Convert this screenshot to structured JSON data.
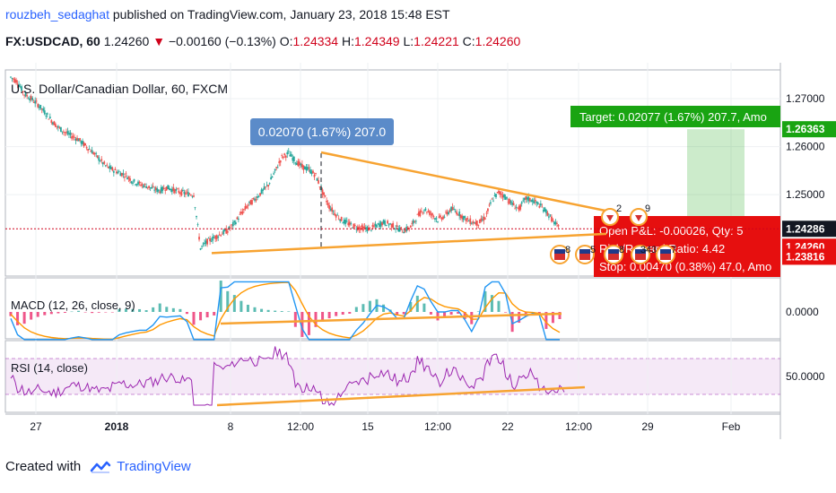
{
  "header": {
    "author": "rouzbeh_sedaghat",
    "published_text": "published on TradingView.com, January 23, 2018 15:48 EST",
    "symbol": "FX:USDCAD, 60",
    "last": "1.24260",
    "change": "−0.00160 (−0.13%)",
    "open_label": "O:",
    "open": "1.24334",
    "high_label": "H:",
    "high": "1.24349",
    "low_label": "L:",
    "low": "1.24221",
    "close_label": "C:",
    "close": "1.24260"
  },
  "footer": {
    "created_with": "Created with",
    "brand": "TradingView"
  },
  "colors": {
    "up": "#26a69a",
    "down": "#ef5350",
    "trendline": "#f7a331",
    "macd": "#2196f3",
    "signal": "#ff9800",
    "rsi": "#9c27b0",
    "target": "#19a412",
    "stop": "#e60f0f"
  },
  "chart_data": [
    {
      "type": "candlestick",
      "title": "U.S. Dollar/Canadian Dollar, 60, FXCM",
      "ylim": [
        1.233,
        1.276
      ],
      "y_ticks": [
        "1.27000",
        "1.26000",
        "1.25000"
      ],
      "x_ticks": [
        "27",
        "2018",
        "8",
        "12:00",
        "15",
        "12:00",
        "22",
        "12:00",
        "29",
        "Feb"
      ],
      "price_labels": {
        "target_level": "1.26363",
        "current": "1.24286",
        "last": "1.24260",
        "stop_level": "1.23816"
      },
      "close_path": [
        1.2745,
        1.2735,
        1.271,
        1.27,
        1.2688,
        1.2672,
        1.2655,
        1.264,
        1.263,
        1.2622,
        1.2615,
        1.2602,
        1.259,
        1.2575,
        1.256,
        1.2552,
        1.2546,
        1.254,
        1.2528,
        1.2522,
        1.2518,
        1.2512,
        1.2508,
        1.2515,
        1.251,
        1.2505,
        1.2502,
        1.25,
        1.2388,
        1.2402,
        1.241,
        1.2418,
        1.2425,
        1.244,
        1.246,
        1.2478,
        1.249,
        1.2505,
        1.252,
        1.2548,
        1.2578,
        1.2586,
        1.257,
        1.2558,
        1.2552,
        1.254,
        1.2505,
        1.2475,
        1.2458,
        1.2445,
        1.2438,
        1.2432,
        1.243,
        1.2428,
        1.2435,
        1.2442,
        1.2438,
        1.243,
        1.2425,
        1.2432,
        1.2455,
        1.247,
        1.246,
        1.2448,
        1.2455,
        1.247,
        1.2462,
        1.245,
        1.2443,
        1.244,
        1.2452,
        1.2488,
        1.2505,
        1.2495,
        1.248,
        1.247,
        1.2492,
        1.2488,
        1.2478,
        1.2465,
        1.2445,
        1.2428
      ],
      "annotations": {
        "measure_label": "0.02070 (1.67%) 207.0",
        "target_label": "Target: 0.02077 (1.67%) 207.7, Amo",
        "open_pl_label": "Open P&L: -0.00026, Qty: 5",
        "ratio_label": "Risk/Reward Ratio: 4.42",
        "stop_label": "Stop: 0.00470 (0.38%) 47.0, Amo",
        "event_markers": [
          "8",
          "5",
          "8",
          "343",
          "7"
        ],
        "event_markers_top": [
          "2",
          "9"
        ]
      },
      "trendlines": [
        {
          "name": "upper",
          "from": [
            "12:00",
            1.2588
          ],
          "to": [
            "26",
            1.2466
          ]
        },
        {
          "name": "lower",
          "from": [
            "7",
            1.2378
          ],
          "to": [
            "26",
            1.2418
          ]
        }
      ]
    },
    {
      "type": "line",
      "title": "MACD (12, 26, close, 9)",
      "y_ticks": [
        "0.0000"
      ],
      "series_names": [
        "MACD",
        "Signal",
        "Histogram"
      ]
    },
    {
      "type": "line",
      "title": "RSI (14, close)",
      "y_ticks": [
        "50.0000"
      ],
      "bands": [
        70,
        30
      ]
    }
  ]
}
